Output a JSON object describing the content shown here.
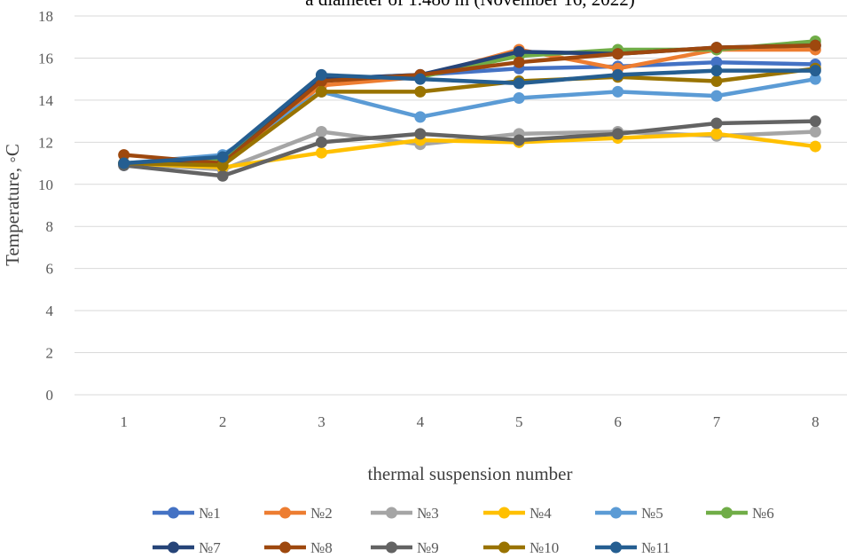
{
  "chart_data": {
    "type": "line",
    "title": "a diameter of 1.480 m (November 16, 2022)",
    "xlabel": "thermal suspension number",
    "ylabel": "Temperature, ◦C",
    "x": [
      1,
      2,
      3,
      4,
      5,
      6,
      7,
      8
    ],
    "ylim": [
      0,
      18
    ],
    "yticks": [
      0,
      2,
      4,
      6,
      8,
      10,
      12,
      14,
      16,
      18
    ],
    "grid": "horizontal",
    "legend_position": "bottom",
    "series": [
      {
        "name": "№1",
        "color": "#4472C4",
        "values": [
          10.9,
          11.2,
          15.0,
          15.2,
          15.5,
          15.6,
          15.8,
          15.7
        ]
      },
      {
        "name": "№2",
        "color": "#ED7D31",
        "values": [
          11.0,
          11.0,
          14.7,
          15.1,
          16.4,
          15.5,
          16.4,
          16.4
        ]
      },
      {
        "name": "№3",
        "color": "#A5A5A5",
        "values": [
          11.0,
          10.7,
          12.5,
          11.9,
          12.4,
          12.5,
          12.3,
          12.5
        ]
      },
      {
        "name": "№4",
        "color": "#FFC000",
        "values": [
          11.0,
          10.8,
          11.5,
          12.1,
          12.0,
          12.2,
          12.4,
          11.8
        ]
      },
      {
        "name": "№5",
        "color": "#5B9BD5",
        "values": [
          11.0,
          11.4,
          14.4,
          13.2,
          14.1,
          14.4,
          14.2,
          15.0
        ]
      },
      {
        "name": "№6",
        "color": "#70AD47",
        "values": [
          11.0,
          11.2,
          15.1,
          15.1,
          16.1,
          16.4,
          16.4,
          16.8
        ]
      },
      {
        "name": "№7",
        "color": "#264478",
        "values": [
          11.0,
          11.0,
          15.0,
          15.2,
          16.3,
          16.2,
          16.5,
          16.6
        ]
      },
      {
        "name": "№8",
        "color": "#9E480E",
        "values": [
          11.4,
          11.0,
          14.9,
          15.2,
          15.8,
          16.2,
          16.5,
          16.6
        ]
      },
      {
        "name": "№9",
        "color": "#636363",
        "values": [
          10.9,
          10.4,
          12.0,
          12.4,
          12.1,
          12.4,
          12.9,
          13.0
        ]
      },
      {
        "name": "№10",
        "color": "#997300",
        "values": [
          11.0,
          10.9,
          14.4,
          14.4,
          14.9,
          15.1,
          14.9,
          15.5
        ]
      },
      {
        "name": "№11",
        "color": "#255E91",
        "values": [
          11.0,
          11.3,
          15.2,
          15.0,
          14.8,
          15.2,
          15.4,
          15.4
        ]
      }
    ]
  }
}
